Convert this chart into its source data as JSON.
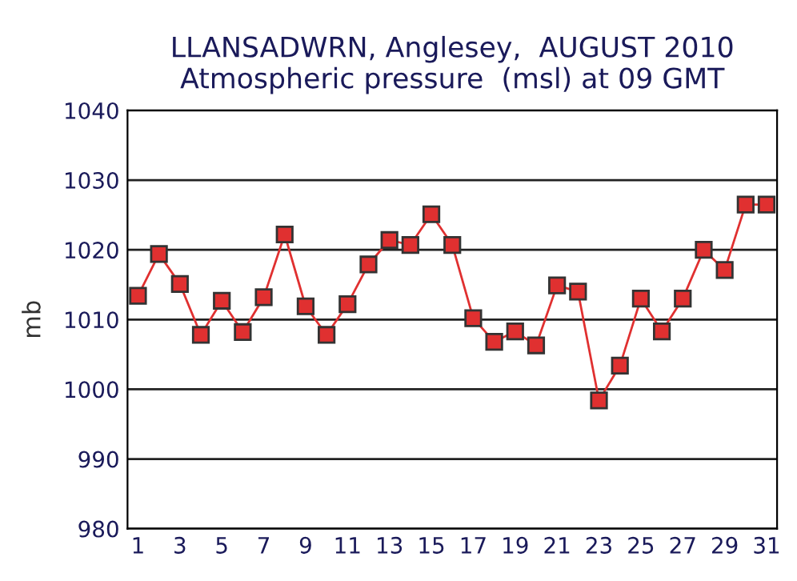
{
  "chart_data": {
    "type": "line",
    "title": "LLANSADWRN, Anglesey,  AUGUST 2010\nAtmospheric pressure  (msl) at 09 GMT",
    "ylabel": "mb",
    "categories": [
      "1",
      null,
      "3",
      null,
      "5",
      null,
      "7",
      null,
      "9",
      null,
      "11",
      null,
      "13",
      null,
      "15",
      null,
      "17",
      null,
      "19",
      null,
      "21",
      null,
      "23",
      null,
      "25",
      null,
      "27",
      null,
      "29",
      null,
      "31"
    ],
    "series": [
      {
        "color": "#e03030",
        "values": [
          1013.4,
          1019.4,
          1015.1,
          1007.8,
          1012.7,
          1008.2,
          1013.2,
          1022.2,
          1011.9,
          1007.8,
          1012.2,
          1017.9,
          1021.4,
          1020.7,
          1025.1,
          1020.7,
          1010.2,
          1006.8,
          1008.3,
          1006.3,
          1014.9,
          1014.0,
          998.4,
          1003.4,
          1013.0,
          1008.3,
          1013.0,
          1020.0,
          1017.1,
          1026.5,
          1026.5
        ]
      }
    ],
    "ylim": [
      980,
      1040
    ],
    "yticks": [
      980,
      990,
      1000,
      1010,
      1020,
      1030,
      1040
    ],
    "grid": "y",
    "marker": "square",
    "line_style": "solid"
  }
}
